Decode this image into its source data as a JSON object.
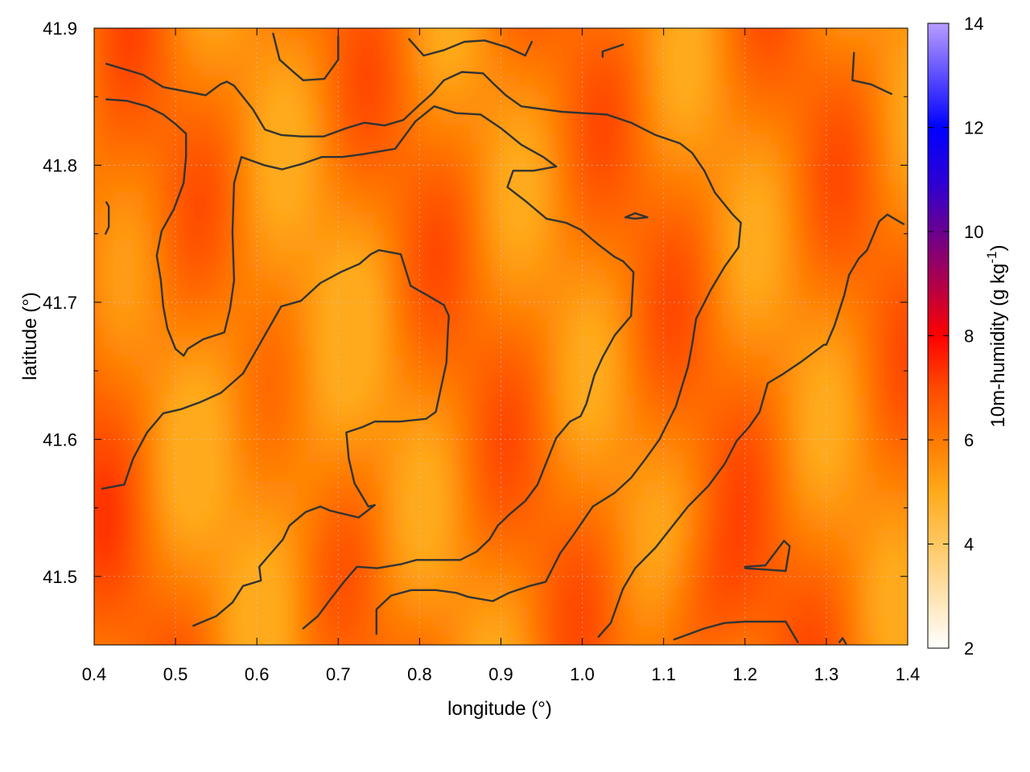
{
  "chart_data": {
    "type": "heatmap",
    "title": "",
    "xlabel": "longitude (°)",
    "ylabel": "latitude (°)",
    "colorbar_label": "10m-humidity (g kg",
    "colorbar_label_sup": "-1",
    "colorbar_label_end": ")",
    "xlim": [
      0.4,
      1.4
    ],
    "ylim": [
      41.45,
      41.9
    ],
    "x_ticks": [
      "0.4",
      "0.5",
      "0.6",
      "0.7",
      "0.8",
      "0.9",
      "1.0",
      "1.1",
      "1.2",
      "1.3",
      "1.4"
    ],
    "y_ticks": [
      "41.5",
      "41.6",
      "41.7",
      "41.8",
      "41.9"
    ],
    "colorbar_range": [
      2,
      14
    ],
    "colorbar_ticks": [
      "2",
      "4",
      "6",
      "8",
      "10",
      "12",
      "14"
    ],
    "colormap": [
      {
        "value": 2,
        "color": "#ffffff"
      },
      {
        "value": 4,
        "color": "#ffc862"
      },
      {
        "value": 5,
        "color": "#ffaa1a"
      },
      {
        "value": 6,
        "color": "#ff7a00"
      },
      {
        "value": 7,
        "color": "#ff4a00"
      },
      {
        "value": 8,
        "color": "#ff0000"
      },
      {
        "value": 9,
        "color": "#b0004a"
      },
      {
        "value": 10,
        "color": "#6a0090"
      },
      {
        "value": 11,
        "color": "#2a00d8"
      },
      {
        "value": 12,
        "color": "#0000ff"
      },
      {
        "value": 14,
        "color": "#b89cff"
      }
    ],
    "field_range": [
      5.0,
      7.4
    ],
    "grid": true,
    "legend": "colorbar-right",
    "contours": [
      [
        [
          0.415,
          41.874
        ],
        [
          0.46,
          41.866
        ],
        [
          0.485,
          41.857
        ],
        [
          0.52,
          41.853
        ],
        [
          0.537,
          41.851
        ],
        [
          0.555,
          41.859
        ],
        [
          0.563,
          41.861
        ],
        [
          0.572,
          41.858
        ],
        [
          0.595,
          41.841
        ],
        [
          0.61,
          41.826
        ],
        [
          0.63,
          41.822
        ],
        [
          0.655,
          41.821
        ],
        [
          0.682,
          41.821
        ],
        [
          0.71,
          41.827
        ],
        [
          0.732,
          41.831
        ],
        [
          0.757,
          41.829
        ],
        [
          0.78,
          41.833
        ],
        [
          0.8,
          41.844
        ],
        [
          0.815,
          41.852
        ],
        [
          0.83,
          41.862
        ],
        [
          0.852,
          41.868
        ],
        [
          0.878,
          41.867
        ],
        [
          0.89,
          41.86
        ],
        [
          0.906,
          41.851
        ],
        [
          0.925,
          41.843
        ],
        [
          0.975,
          41.839
        ],
        [
          1.03,
          41.837
        ],
        [
          1.06,
          41.831
        ],
        [
          1.09,
          41.822
        ],
        [
          1.12,
          41.816
        ],
        [
          1.135,
          41.809
        ],
        [
          1.15,
          41.796
        ],
        [
          1.163,
          41.78
        ],
        [
          1.185,
          41.764
        ],
        [
          1.195,
          41.758
        ]
      ],
      [
        [
          0.415,
          41.848
        ],
        [
          0.44,
          41.847
        ],
        [
          0.465,
          41.843
        ],
        [
          0.485,
          41.837
        ],
        [
          0.5,
          41.83
        ],
        [
          0.513,
          41.823
        ],
        [
          0.513,
          41.806
        ],
        [
          0.51,
          41.787
        ],
        [
          0.498,
          41.768
        ],
        [
          0.483,
          41.752
        ],
        [
          0.477,
          41.734
        ],
        [
          0.482,
          41.716
        ],
        [
          0.485,
          41.697
        ],
        [
          0.49,
          41.681
        ],
        [
          0.5,
          41.666
        ],
        [
          0.51,
          41.661
        ],
        [
          0.515,
          41.666
        ],
        [
          0.534,
          41.673
        ],
        [
          0.56,
          41.678
        ],
        [
          0.567,
          41.695
        ],
        [
          0.572,
          41.716
        ],
        [
          0.57,
          41.751
        ],
        [
          0.572,
          41.787
        ],
        [
          0.581,
          41.806
        ],
        [
          0.609,
          41.8
        ],
        [
          0.631,
          41.797
        ],
        [
          0.656,
          41.801
        ],
        [
          0.68,
          41.806
        ],
        [
          0.705,
          41.806
        ],
        [
          0.73,
          41.808
        ],
        [
          0.77,
          41.812
        ],
        [
          0.795,
          41.832
        ],
        [
          0.818,
          41.843
        ],
        [
          0.845,
          41.838
        ],
        [
          0.875,
          41.837
        ],
        [
          0.9,
          41.827
        ],
        [
          0.925,
          41.815
        ],
        [
          0.952,
          41.806
        ],
        [
          0.968,
          41.799
        ],
        [
          0.94,
          41.796
        ],
        [
          0.915,
          41.796
        ],
        [
          0.908,
          41.784
        ],
        [
          0.93,
          41.774
        ],
        [
          0.956,
          41.761
        ],
        [
          0.98,
          41.758
        ],
        [
          0.998,
          41.753
        ],
        [
          1.012,
          41.746
        ],
        [
          1.02,
          41.742
        ],
        [
          1.04,
          41.733
        ],
        [
          1.05,
          41.73
        ]
      ],
      [
        [
          0.41,
          41.564
        ],
        [
          0.437,
          41.567
        ],
        [
          0.448,
          41.586
        ],
        [
          0.465,
          41.605
        ],
        [
          0.485,
          41.619
        ],
        [
          0.507,
          41.622
        ],
        [
          0.53,
          41.627
        ],
        [
          0.556,
          41.634
        ],
        [
          0.583,
          41.648
        ],
        [
          0.605,
          41.671
        ],
        [
          0.63,
          41.697
        ],
        [
          0.654,
          41.701
        ],
        [
          0.678,
          41.714
        ],
        [
          0.703,
          41.722
        ],
        [
          0.726,
          41.728
        ],
        [
          0.74,
          41.735
        ],
        [
          0.75,
          41.738
        ],
        [
          0.777,
          41.735
        ],
        [
          0.789,
          41.712
        ],
        [
          0.81,
          41.705
        ],
        [
          0.83,
          41.698
        ],
        [
          0.836,
          41.69
        ],
        [
          0.835,
          41.681
        ],
        [
          0.833,
          41.656
        ],
        [
          0.82,
          41.62
        ],
        [
          0.808,
          41.615
        ],
        [
          0.776,
          41.613
        ],
        [
          0.745,
          41.613
        ],
        [
          0.73,
          41.609
        ],
        [
          0.71,
          41.605
        ],
        [
          0.713,
          41.586
        ],
        [
          0.72,
          41.568
        ],
        [
          0.737,
          41.551
        ],
        [
          0.745,
          41.552
        ],
        [
          0.725,
          41.543
        ],
        [
          0.69,
          41.548
        ],
        [
          0.678,
          41.551
        ],
        [
          0.66,
          41.547
        ],
        [
          0.64,
          41.537
        ],
        [
          0.632,
          41.527
        ],
        [
          0.616,
          41.516
        ],
        [
          0.603,
          41.507
        ],
        [
          0.605,
          41.497
        ],
        [
          0.583,
          41.493
        ],
        [
          0.57,
          41.481
        ],
        [
          0.55,
          41.471
        ],
        [
          0.522,
          41.464
        ]
      ],
      [
        [
          0.657,
          41.462
        ],
        [
          0.675,
          41.471
        ],
        [
          0.69,
          41.483
        ],
        [
          0.707,
          41.496
        ],
        [
          0.723,
          41.507
        ],
        [
          0.748,
          41.506
        ],
        [
          0.778,
          41.509
        ],
        [
          0.796,
          41.512
        ],
        [
          0.83,
          41.512
        ],
        [
          0.85,
          41.512
        ],
        [
          0.87,
          41.518
        ],
        [
          0.886,
          41.527
        ],
        [
          0.896,
          41.537
        ],
        [
          0.91,
          41.545
        ],
        [
          0.93,
          41.555
        ],
        [
          0.945,
          41.567
        ],
        [
          0.968,
          41.601
        ],
        [
          0.985,
          41.613
        ],
        [
          0.998,
          41.617
        ],
        [
          1.005,
          41.626
        ],
        [
          1.015,
          41.647
        ],
        [
          1.025,
          41.66
        ],
        [
          1.04,
          41.676
        ],
        [
          1.06,
          41.69
        ],
        [
          1.063,
          41.722
        ],
        [
          1.05,
          41.73
        ]
      ],
      [
        [
          0.747,
          41.458
        ],
        [
          0.747,
          41.476
        ],
        [
          0.765,
          41.486
        ],
        [
          0.79,
          41.49
        ],
        [
          0.82,
          41.49
        ],
        [
          0.845,
          41.488
        ],
        [
          0.86,
          41.485
        ],
        [
          0.89,
          41.482
        ],
        [
          0.91,
          41.488
        ],
        [
          0.935,
          41.493
        ],
        [
          0.955,
          41.496
        ],
        [
          0.973,
          41.517
        ],
        [
          0.99,
          41.531
        ],
        [
          1.013,
          41.551
        ],
        [
          1.04,
          41.561
        ],
        [
          1.06,
          41.572
        ],
        [
          1.078,
          41.586
        ],
        [
          1.095,
          41.6
        ],
        [
          1.115,
          41.624
        ],
        [
          1.13,
          41.653
        ],
        [
          1.135,
          41.669
        ],
        [
          1.14,
          41.688
        ],
        [
          1.158,
          41.709
        ],
        [
          1.175,
          41.726
        ],
        [
          1.192,
          41.74
        ],
        [
          1.195,
          41.758
        ]
      ],
      [
        [
          1.02,
          41.456
        ],
        [
          1.035,
          41.466
        ],
        [
          1.05,
          41.491
        ],
        [
          1.065,
          41.506
        ],
        [
          1.09,
          41.521
        ],
        [
          1.11,
          41.536
        ],
        [
          1.13,
          41.551
        ],
        [
          1.155,
          41.566
        ],
        [
          1.175,
          41.582
        ],
        [
          1.19,
          41.599
        ],
        [
          1.205,
          41.609
        ],
        [
          1.218,
          41.62
        ],
        [
          1.228,
          41.641
        ],
        [
          1.245,
          41.647
        ],
        [
          1.27,
          41.657
        ],
        [
          1.297,
          41.669
        ],
        [
          1.3,
          41.669
        ],
        [
          1.31,
          41.683
        ],
        [
          1.322,
          41.705
        ],
        [
          1.328,
          41.72
        ],
        [
          1.34,
          41.732
        ],
        [
          1.35,
          41.738
        ],
        [
          1.365,
          41.759
        ],
        [
          1.375,
          41.764
        ],
        [
          1.395,
          41.757
        ]
      ],
      [
        [
          1.113,
          41.454
        ],
        [
          1.15,
          41.462
        ],
        [
          1.175,
          41.466
        ],
        [
          1.2,
          41.467
        ],
        [
          1.25,
          41.467
        ],
        [
          1.265,
          41.452
        ]
      ],
      [
        [
          1.2,
          41.507
        ],
        [
          1.225,
          41.508
        ],
        [
          1.248,
          41.526
        ],
        [
          1.255,
          41.522
        ],
        [
          1.25,
          41.504
        ],
        [
          1.2,
          41.506
        ]
      ],
      [
        [
          0.62,
          41.896
        ],
        [
          0.628,
          41.877
        ],
        [
          0.645,
          41.868
        ],
        [
          0.657,
          41.862
        ],
        [
          0.683,
          41.863
        ],
        [
          0.7,
          41.877
        ],
        [
          0.7,
          41.894
        ]
      ],
      [
        [
          0.787,
          41.892
        ],
        [
          0.805,
          41.88
        ],
        [
          0.83,
          41.884
        ],
        [
          0.855,
          41.89
        ],
        [
          0.88,
          41.891
        ],
        [
          0.908,
          41.886
        ],
        [
          0.93,
          41.88
        ],
        [
          0.938,
          41.89
        ]
      ],
      [
        [
          1.025,
          41.879
        ],
        [
          1.025,
          41.883
        ],
        [
          1.05,
          41.888
        ]
      ],
      [
        [
          1.334,
          41.882
        ],
        [
          1.332,
          41.862
        ],
        [
          1.355,
          41.859
        ],
        [
          1.38,
          41.852
        ]
      ],
      [
        [
          0.415,
          41.773
        ],
        [
          0.418,
          41.77
        ],
        [
          0.418,
          41.755
        ],
        [
          0.414,
          41.75
        ]
      ],
      [
        [
          1.053,
          41.762
        ],
        [
          1.065,
          41.765
        ],
        [
          1.08,
          41.762
        ],
        [
          1.065,
          41.761
        ],
        [
          1.053,
          41.762
        ]
      ],
      [
        [
          1.316,
          41.452
        ],
        [
          1.32,
          41.455
        ],
        [
          1.324,
          41.451
        ]
      ]
    ]
  }
}
